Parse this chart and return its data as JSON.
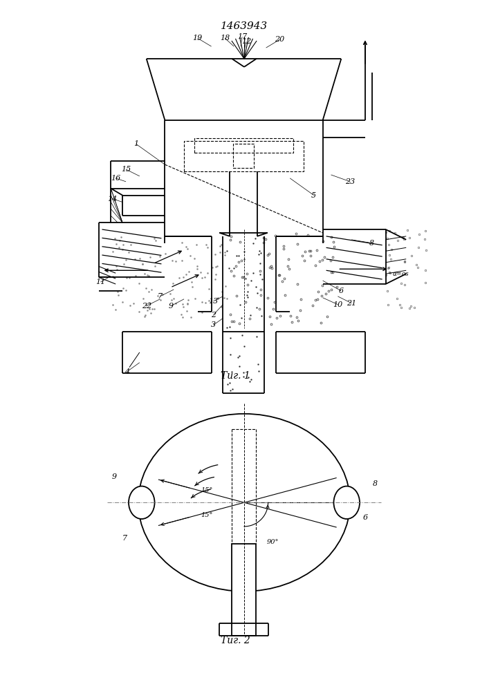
{
  "title": "1463943",
  "fig1_caption": "Τиг. 1",
  "fig2_caption": "Τиг. 2",
  "bg_color": "#ffffff",
  "lc": "#000000",
  "lw": 1.3,
  "tlw": 0.8
}
